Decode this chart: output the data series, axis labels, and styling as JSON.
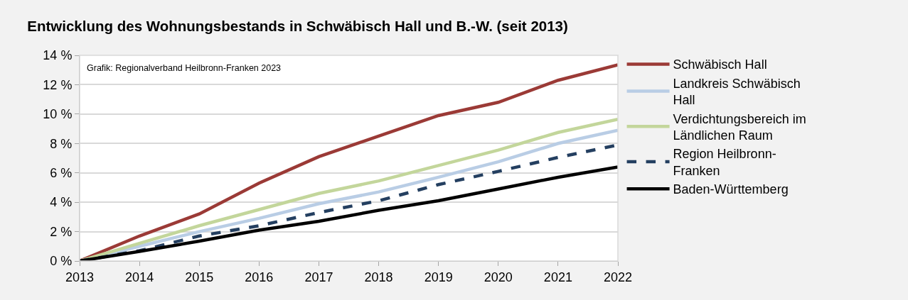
{
  "chart_data": {
    "type": "line",
    "title": "Entwicklung des Wohnungsbestands in Schwäbisch Hall und B.-W. (seit 2013)",
    "annotations": [
      "Grafik: Regionalverband Heilbronn-Franken 2023"
    ],
    "x": [
      2013,
      2014,
      2015,
      2016,
      2017,
      2018,
      2019,
      2020,
      2021,
      2022
    ],
    "series": [
      {
        "name": "Schwäbisch Hall",
        "color": "#9b3a36",
        "values": [
          0,
          1.7,
          3.2,
          5.3,
          7.1,
          8.5,
          9.9,
          10.8,
          12.3,
          13.35
        ]
      },
      {
        "name": "Landkreis Schwäbisch Hall",
        "color": "#b9cde5",
        "values": [
          0,
          1.0,
          2.0,
          2.9,
          3.9,
          4.7,
          5.7,
          6.75,
          8.0,
          8.9
        ]
      },
      {
        "name": "Verdichtungsbereich im Ländlichen Raum",
        "color": "#c3d69b",
        "values": [
          0,
          1.2,
          2.4,
          3.5,
          4.6,
          5.45,
          6.5,
          7.55,
          8.75,
          9.65
        ]
      },
      {
        "name": "Region Heilbronn-Franken",
        "color": "#243f60",
        "line_style": "dashed",
        "values": [
          0,
          0.7,
          1.7,
          2.4,
          3.3,
          4.1,
          5.2,
          6.1,
          7.05,
          7.9
        ]
      },
      {
        "name": "Baden-Württemberg",
        "color": "#000000",
        "values": [
          0,
          0.65,
          1.35,
          2.1,
          2.7,
          3.45,
          4.1,
          4.9,
          5.7,
          6.4
        ]
      }
    ],
    "xlim": [
      2013,
      2022
    ],
    "xticks": [
      2013,
      2014,
      2015,
      2016,
      2017,
      2018,
      2019,
      2020,
      2021,
      2022
    ],
    "ylim": [
      0,
      14
    ],
    "yticks": [
      {
        "value": 0,
        "label": "0 %"
      },
      {
        "value": 2,
        "label": "2 %"
      },
      {
        "value": 4,
        "label": "4 %"
      },
      {
        "value": 6,
        "label": "6 %"
      },
      {
        "value": 8,
        "label": "8 %"
      },
      {
        "value": 10,
        "label": "10 %"
      },
      {
        "value": 12,
        "label": "12 %"
      },
      {
        "value": 14,
        "label": "14 %"
      }
    ],
    "grid": "y",
    "legend": "right",
    "line_style": "solid",
    "marker": "none"
  }
}
